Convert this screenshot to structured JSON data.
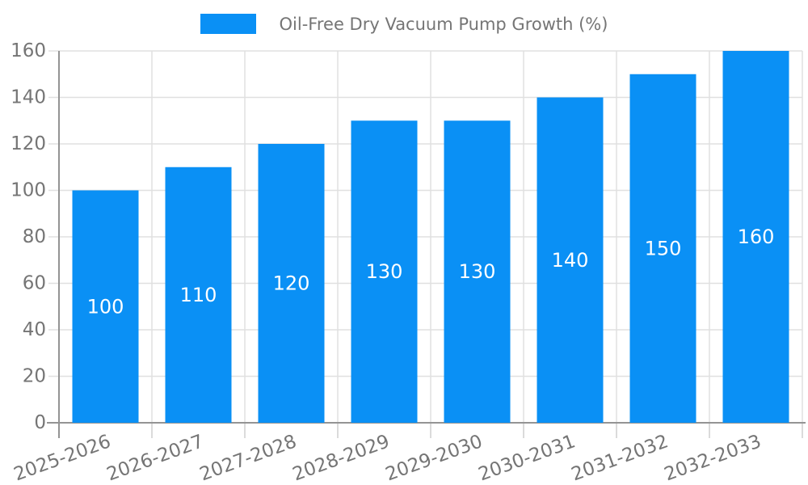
{
  "legend": {
    "label": "Oil-Free Dry Vacuum Pump Growth (%)"
  },
  "colors": {
    "bar": "#0a90f5",
    "axis": "#949494",
    "grid": "#e0e0e0",
    "x_tick": "#cfcfcf",
    "tick_label": "#757575",
    "value_label": "#ffffff",
    "background": "#ffffff"
  },
  "chart_data": {
    "type": "bar",
    "title": "Oil-Free Dry Vacuum Pump Growth (%)",
    "categories": [
      "2025-2026",
      "2026-2027",
      "2027-2028",
      "2028-2029",
      "2029-2030",
      "2030-2031",
      "2031-2032",
      "2032-2033"
    ],
    "values": [
      100,
      110,
      120,
      130,
      130,
      140,
      150,
      160
    ],
    "xlabel": "",
    "ylabel": "",
    "ylim": [
      0,
      160
    ],
    "yticks": [
      0,
      20,
      40,
      60,
      80,
      100,
      120,
      140,
      160
    ],
    "grid": true,
    "legend_position": "top",
    "value_labels": "inside-center",
    "x_label_rotation_deg": -20
  }
}
